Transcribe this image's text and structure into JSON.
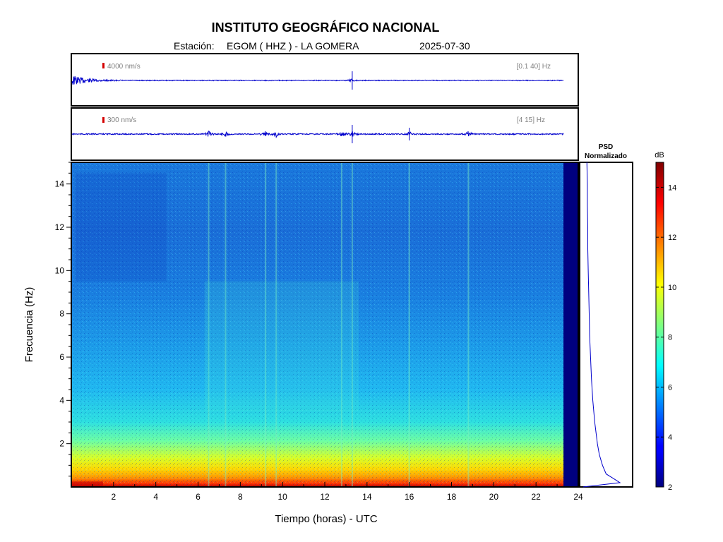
{
  "header": {
    "title": "INSTITUTO GEOGRÁFICO NACIONAL",
    "station_label": "Estación:",
    "station": "EGOM ( HHZ ) - LA GOMERA",
    "date": "2025-07-30"
  },
  "chart_data": [
    {
      "type": "line",
      "name": "seismogram-broadband",
      "scale_label": "4000 nm/s",
      "band_label": "[0.1 40] Hz",
      "color": "#0000cc",
      "xlim": [
        0,
        24
      ],
      "events_hours": [
        13.3
      ],
      "early_noise_hours": [
        0,
        2.5
      ]
    },
    {
      "type": "line",
      "name": "seismogram-filtered",
      "scale_label": "300 nm/s",
      "band_label": "[4 15] Hz",
      "color": "#0000cc",
      "xlim": [
        0,
        24
      ],
      "events_hours": [
        6.5,
        7.3,
        9.2,
        9.7,
        12.8,
        13.3,
        16.0,
        18.8
      ]
    },
    {
      "type": "heatmap",
      "name": "spectrogram",
      "xlabel": "Tiempo (horas) - UTC",
      "ylabel": "Frecuencia  (Hz)",
      "xlim": [
        0,
        24
      ],
      "ylim": [
        0,
        15
      ],
      "x_ticks": [
        "2",
        "4",
        "6",
        "8",
        "10",
        "12",
        "14",
        "16",
        "18",
        "20",
        "22",
        "24"
      ],
      "y_ticks": [
        "2",
        "4",
        "6",
        "8",
        "10",
        "12",
        "14"
      ],
      "data_end_hour": 23.3,
      "colormap": "jet"
    },
    {
      "type": "line",
      "name": "psd",
      "title_line1": "PSD",
      "title_line2": "Normalizado",
      "color": "#0000cc",
      "frequency_hz": [
        0.0,
        0.2,
        0.4,
        0.6,
        1.0,
        1.5,
        2.0,
        2.5,
        3.0,
        4.0,
        5.0,
        6.0,
        7.0,
        8.0,
        9.0,
        10.0,
        11.0,
        12.0,
        13.0,
        14.0,
        15.0
      ],
      "normalized_value": [
        0.0,
        0.8,
        0.65,
        0.5,
        0.42,
        0.35,
        0.31,
        0.28,
        0.25,
        0.21,
        0.18,
        0.16,
        0.14,
        0.13,
        0.12,
        0.11,
        0.1,
        0.1,
        0.09,
        0.09,
        0.08
      ]
    }
  ],
  "colorbar": {
    "unit": "dB",
    "min": 2,
    "max": 15,
    "ticks": [
      "2",
      "4",
      "6",
      "8",
      "10",
      "12",
      "14"
    ]
  }
}
